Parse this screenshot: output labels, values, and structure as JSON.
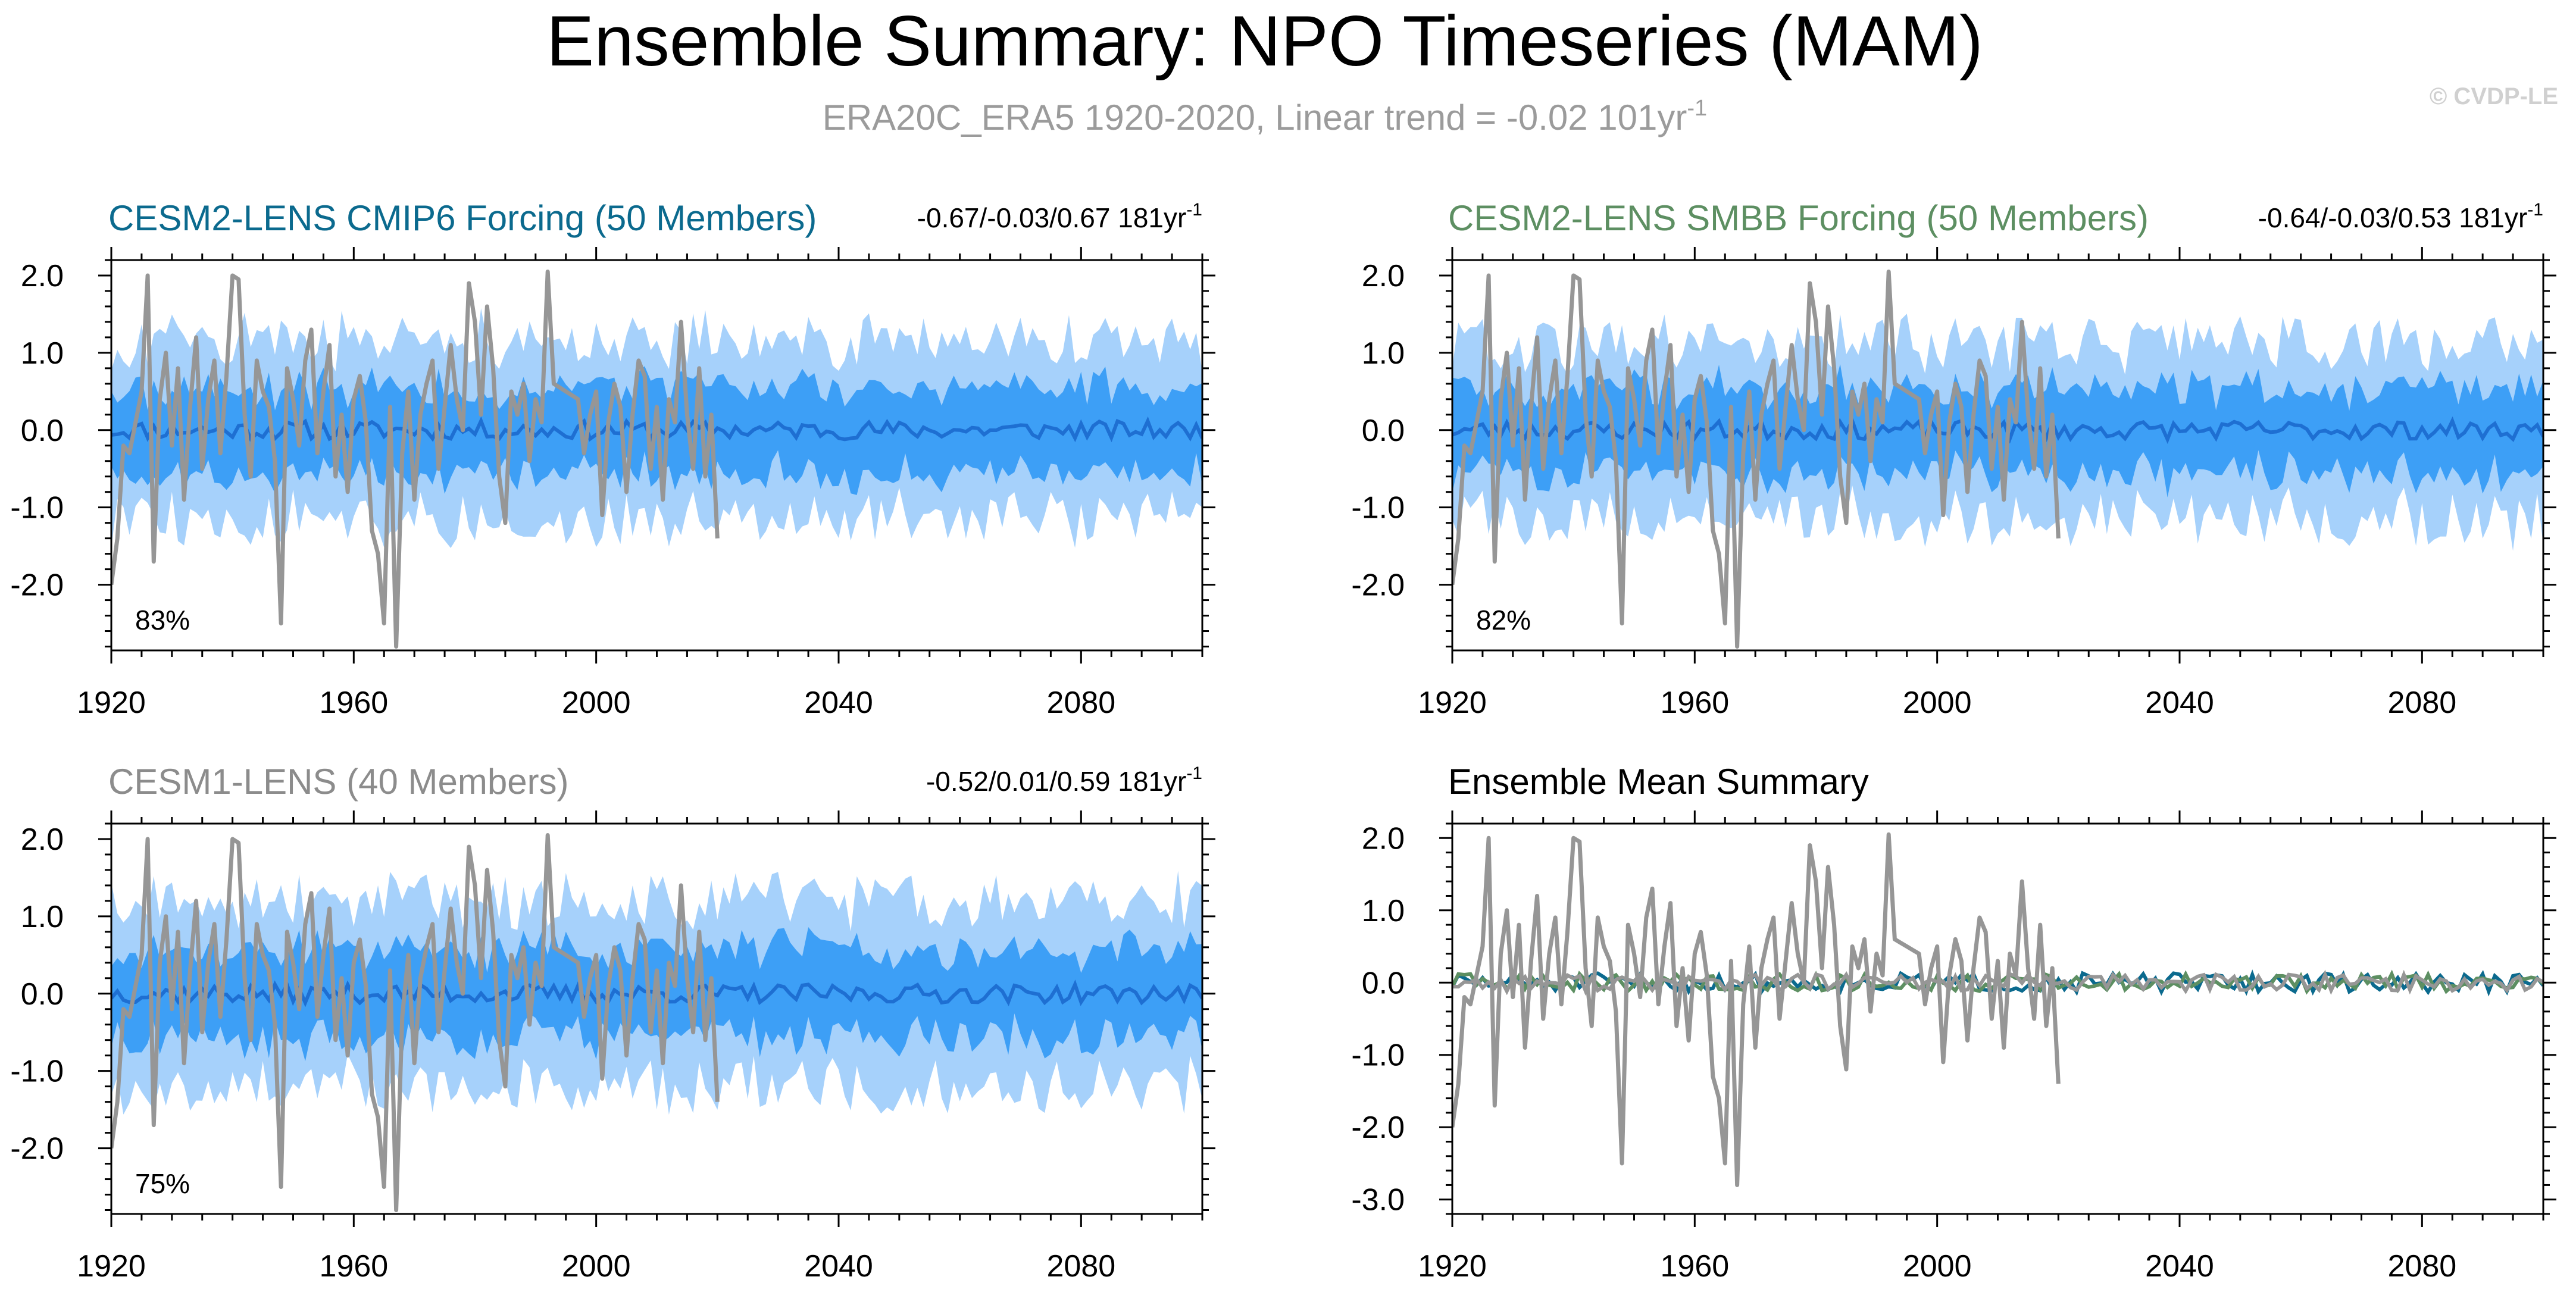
{
  "figure": {
    "title": "Ensemble Summary: NPO Timeseries (MAM)",
    "subtitle_main": "ERA20C_ERA5 1920-2020, Linear trend = -0.02 101yr",
    "subtitle_sup": "-1",
    "credit": "© CVDP-LE"
  },
  "colors": {
    "band_outer": "#a6d1fb",
    "band_inner": "#3d9ff6",
    "ens_mean": "#1e6fd2",
    "obs": "#969696",
    "cmip6": "#0b6a8e",
    "smbb": "#5d8f62",
    "cesm1": "#8c8c8c",
    "axis": "#000000"
  },
  "chart_data": [
    {
      "type": "area",
      "id": "p1",
      "title": "CESM2-LENS CMIP6 Forcing (50 Members)",
      "title_color": "#0b6a8e",
      "trend_main": "-0.67/-0.03/0.67 181yr",
      "trend_sup": "-1",
      "pct": "83%",
      "xlim": [
        1920,
        2100
      ],
      "ylim": [
        -2.85,
        2.2
      ],
      "xticks": [
        1920,
        1960,
        2000,
        2040,
        2080
      ],
      "xtick_labels": [
        "1920",
        "1960",
        "2000",
        "2040",
        "2080"
      ],
      "yticks": [
        2.0,
        1.0,
        0.0,
        -1.0,
        -2.0
      ],
      "ytick_labels": [
        "2.0",
        "1.0",
        "0.0",
        "-1.0",
        "-2.0"
      ],
      "series": [
        {
          "name": "ensemble 10-90% range",
          "role": "outer_band"
        },
        {
          "name": "ensemble 25-75% range",
          "role": "inner_band"
        },
        {
          "name": "ensemble mean",
          "role": "mean"
        },
        {
          "name": "ERA20C_ERA5 observed",
          "role": "obs",
          "x_range": [
            1920,
            2020
          ]
        }
      ],
      "band": {
        "outer": 1.15,
        "inner": 0.58,
        "mean_amp": 0.12,
        "seed": 11
      }
    },
    {
      "type": "area",
      "id": "p2",
      "title": "CESM2-LENS SMBB Forcing (50 Members)",
      "title_color": "#5d8f62",
      "trend_main": "-0.64/-0.03/0.53 181yr",
      "trend_sup": "-1",
      "pct": "82%",
      "xlim": [
        1920,
        2100
      ],
      "ylim": [
        -2.85,
        2.2
      ],
      "xticks": [
        1920,
        1960,
        2000,
        2040,
        2080
      ],
      "xtick_labels": [
        "1920",
        "1960",
        "2000",
        "2040",
        "2080"
      ],
      "yticks": [
        2.0,
        1.0,
        0.0,
        -1.0,
        -2.0
      ],
      "ytick_labels": [
        "2.0",
        "1.0",
        "0.0",
        "-1.0",
        "-2.0"
      ],
      "series": [
        {
          "name": "ensemble 10-90% range",
          "role": "outer_band"
        },
        {
          "name": "ensemble 25-75% range",
          "role": "inner_band"
        },
        {
          "name": "ensemble mean",
          "role": "mean"
        },
        {
          "name": "ERA20C_ERA5 observed",
          "role": "obs",
          "x_range": [
            1920,
            2020
          ]
        }
      ],
      "band": {
        "outer": 1.15,
        "inner": 0.58,
        "mean_amp": 0.12,
        "seed": 23
      }
    },
    {
      "type": "area",
      "id": "p3",
      "title": "CESM1-LENS (40 Members)",
      "title_color": "#8c8c8c",
      "trend_main": "-0.52/0.01/0.59 181yr",
      "trend_sup": "-1",
      "pct": "75%",
      "xlim": [
        1920,
        2100
      ],
      "ylim": [
        -2.85,
        2.2
      ],
      "xticks": [
        1920,
        1960,
        2000,
        2040,
        2080
      ],
      "xtick_labels": [
        "1920",
        "1960",
        "2000",
        "2040",
        "2080"
      ],
      "yticks": [
        2.0,
        1.0,
        0.0,
        -1.0,
        -2.0
      ],
      "ytick_labels": [
        "2.0",
        "1.0",
        "0.0",
        "-1.0",
        "-2.0"
      ],
      "series": [
        {
          "name": "ensemble 10-90% range",
          "role": "outer_band"
        },
        {
          "name": "ensemble 25-75% range",
          "role": "inner_band"
        },
        {
          "name": "ensemble mean",
          "role": "mean"
        },
        {
          "name": "ERA20C_ERA5 observed",
          "role": "obs",
          "x_range": [
            1920,
            2020
          ]
        }
      ],
      "band": {
        "outer": 1.2,
        "inner": 0.6,
        "mean_amp": 0.12,
        "seed": 37
      }
    },
    {
      "type": "line",
      "id": "p4",
      "title": "Ensemble Mean Summary",
      "title_color": "#000000",
      "pct": "",
      "xlim": [
        1920,
        2100
      ],
      "ylim": [
        -3.2,
        2.2
      ],
      "xticks": [
        1920,
        1960,
        2000,
        2040,
        2080
      ],
      "xtick_labels": [
        "1920",
        "1960",
        "2000",
        "2040",
        "2080"
      ],
      "yticks": [
        2.0,
        1.0,
        0.0,
        -1.0,
        -2.0,
        -3.0
      ],
      "ytick_labels": [
        "2.0",
        "1.0",
        "0.0",
        "-1.0",
        "-2.0",
        "-3.0"
      ],
      "series": [
        {
          "name": "CESM2-LENS CMIP6 Forcing mean",
          "role": "mean_line",
          "color": "#0b6a8e",
          "seed": 51,
          "amp": 0.13
        },
        {
          "name": "CESM2-LENS SMBB Forcing mean",
          "role": "mean_line",
          "color": "#5d8f62",
          "seed": 63,
          "amp": 0.12
        },
        {
          "name": "CESM1-LENS mean",
          "role": "mean_line",
          "color": "#969696",
          "seed": 77,
          "amp": 0.12
        },
        {
          "name": "ERA20C_ERA5 observed",
          "role": "obs",
          "x_range": [
            1920,
            2020
          ]
        }
      ]
    }
  ],
  "obs_series": {
    "start_year": 1920,
    "values": [
      -2.0,
      -1.4,
      -0.2,
      -0.3,
      0.1,
      0.5,
      2.0,
      -1.7,
      0.4,
      1.0,
      -0.2,
      0.8,
      -0.9,
      0.3,
      1.2,
      -0.5,
      0.4,
      0.9,
      -0.3,
      0.7,
      2.0,
      1.95,
      0.2,
      -0.6,
      0.9,
      0.5,
      0.3,
      -0.4,
      -2.5,
      0.8,
      0.4,
      -0.2,
      0.9,
      1.3,
      -0.3,
      0.5,
      1.1,
      -0.6,
      0.2,
      -0.8,
      0.4,
      0.7,
      0.1,
      -1.3,
      -1.6,
      -2.5,
      0.3,
      -2.8,
      -0.3,
      0.5,
      -0.9,
      0.2,
      0.6,
      0.9,
      -0.5,
      0.3,
      1.1,
      0.4,
      0.0,
      1.9,
      1.4,
      0.2,
      1.6,
      0.8,
      -0.6,
      -1.2,
      0.5,
      0.2,
      0.6,
      -0.4,
      0.4,
      0.1,
      2.05,
      0.6,
      0.55,
      0.5,
      0.45,
      0.4,
      -0.3,
      0.2,
      0.5,
      -1.1,
      0.1,
      0.6,
      0.3,
      -0.8,
      0.2,
      0.9,
      0.7,
      -0.5,
      0.3,
      -0.9,
      0.4,
      0.1,
      1.4,
      0.2,
      -0.5,
      0.8,
      -0.6,
      0.2,
      -1.4
    ]
  }
}
